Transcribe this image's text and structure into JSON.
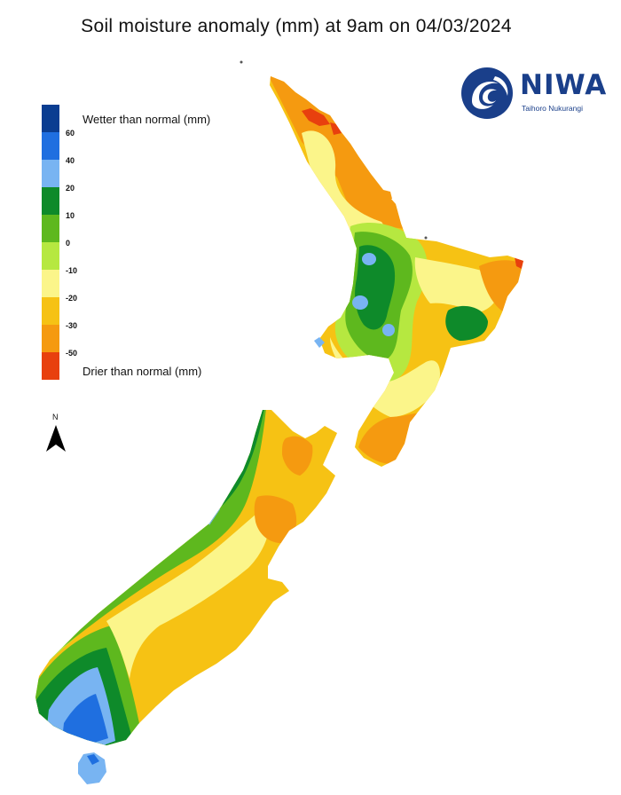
{
  "title": "Soil moisture anomaly (mm) at 9am on 04/03/2024",
  "logo": {
    "name": "NIWA",
    "tagline": "Taihoro Nukurangi"
  },
  "legend": {
    "wetter_label": "Wetter than normal (mm)",
    "drier_label": "Drier than normal (mm)",
    "ticks": [
      "60",
      "40",
      "20",
      "10",
      "0",
      "-10",
      "-20",
      "-30",
      "-50"
    ],
    "colors": [
      "#0a3d91",
      "#1f6fe0",
      "#78b4f2",
      "#0e8a2a",
      "#5eb81e",
      "#b6e840",
      "#fbf58a",
      "#f6c214",
      "#f59a10",
      "#e8400e"
    ]
  },
  "north_label": "N"
}
